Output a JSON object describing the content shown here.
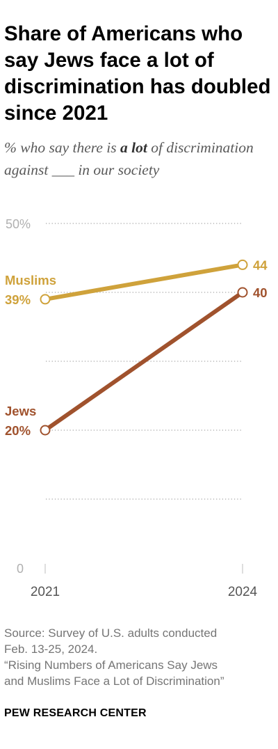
{
  "title": "Share of Americans who say Jews face a lot of discrimination has doubled since 2021",
  "subtitle": {
    "part1": "% who say there is ",
    "emphasis": "a lot",
    "part2": " of discrimination against ___ in our society"
  },
  "chart_data": {
    "type": "line",
    "title": "Share of Americans who say Jews face a lot of discrimination has doubled since 2021",
    "subtitle": "% who say there is a lot of discrimination against ___ in our society",
    "xlabel": "",
    "ylabel": "",
    "x": [
      "2021",
      "2024"
    ],
    "ylim": [
      0,
      50
    ],
    "y_ticks": [
      0,
      10,
      20,
      30,
      40,
      50
    ],
    "y_tick_labels": [
      "0",
      "",
      "",
      "",
      "",
      "50%"
    ],
    "grid": true,
    "legend": "inline labels at series start",
    "series": [
      {
        "name": "Muslims",
        "values": [
          39,
          44
        ],
        "labels": [
          "39%",
          "44"
        ],
        "color": "#CFA23B"
      },
      {
        "name": "Jews",
        "values": [
          20,
          40
        ],
        "labels": [
          "20%",
          "40"
        ],
        "color": "#A0522D"
      }
    ]
  },
  "source": {
    "line1": "Source: Survey of U.S. adults conducted",
    "line2": "Feb. 13-25, 2024.",
    "line3": "“Rising Numbers of Americans Say Jews",
    "line4": "and Muslims Face a Lot of Discrimination”"
  },
  "brand": "PEW RESEARCH CENTER"
}
